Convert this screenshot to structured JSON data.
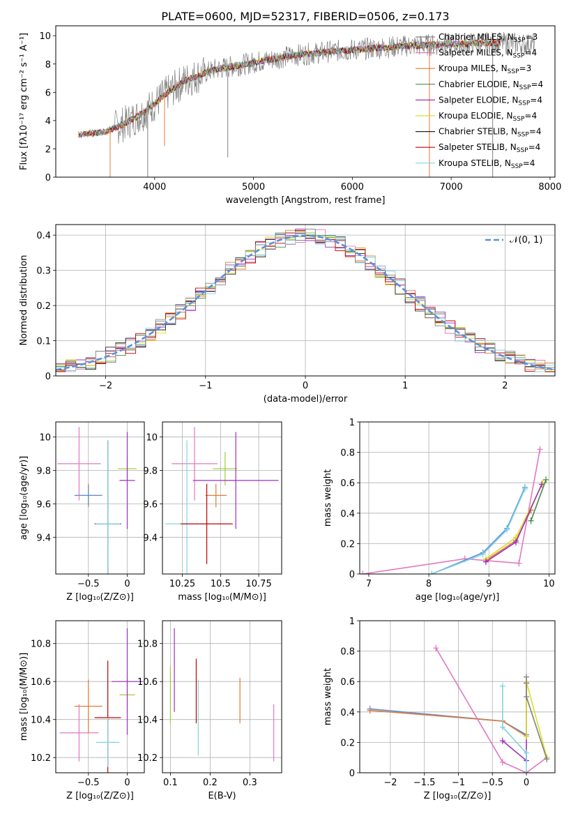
{
  "figure_title": "PLATE=0600, MJD=52317, FIBERID=0506, z=0.173",
  "colors": {
    "grey": "#808080",
    "pink": "#e377c2",
    "orange": "#e07b39",
    "green": "#4a8a4a",
    "purple": "#9b30c0",
    "yellow": "#d9e021",
    "black": "#222222",
    "red": "#c00000",
    "cyan": "#7fd3e0",
    "blue": "#5b8fd9",
    "olive": "#9acd32"
  },
  "chart_data": [
    {
      "id": "spectrum",
      "type": "line",
      "xlabel": "wavelength [Angstrom, rest frame]",
      "ylabel": "Flux [fλ10⁻¹⁷ erg cm⁻² s⁻¹ A⁻¹]",
      "xlim": [
        3000,
        8050
      ],
      "ylim": [
        0,
        10.7
      ],
      "xticks": [
        4000,
        5000,
        6000,
        7000,
        8000
      ],
      "yticks": [
        0,
        2,
        4,
        6,
        8,
        10
      ],
      "grid": false,
      "legend_position": "top-right",
      "legend": [
        {
          "label": "Chabrier MILES, N_SSP=3",
          "color": "grey"
        },
        {
          "label": "Salpeter MILES, N_SSP=4",
          "color": "pink"
        },
        {
          "label": "Kroupa MILES, N_SSP=3",
          "color": "orange"
        },
        {
          "label": "Chabrier ELODIE, N_SSP=4",
          "color": "green"
        },
        {
          "label": "Salpeter ELODIE, N_SSP=4",
          "color": "purple"
        },
        {
          "label": "Kroupa ELODIE, N_SSP=4",
          "color": "yellow"
        },
        {
          "label": "Chabrier STELIB, N_SSP=4",
          "color": "black"
        },
        {
          "label": "Salpeter STELIB, N_SSP=4",
          "color": "red"
        },
        {
          "label": "Kroupa STELIB, N_SSP=4",
          "color": "cyan"
        }
      ],
      "continuum": {
        "x": [
          3230,
          3500,
          3700,
          3900,
          4100,
          4300,
          4600,
          5000,
          5400,
          5800,
          6200,
          6600,
          7000,
          7400,
          7800
        ],
        "y": [
          3.0,
          3.2,
          3.8,
          4.6,
          5.8,
          6.8,
          7.6,
          8.1,
          8.6,
          8.9,
          9.1,
          9.3,
          9.4,
          9.5,
          9.4
        ]
      },
      "dips": [
        {
          "x": 3550,
          "y": 0
        },
        {
          "x": 3930,
          "y": 0
        },
        {
          "x": 4100,
          "y": 2.2
        },
        {
          "x": 4740,
          "y": 1.4
        },
        {
          "x": 6780,
          "y": 0
        },
        {
          "x": 7420,
          "y": 0
        }
      ]
    },
    {
      "id": "residuals",
      "type": "line",
      "xlabel": "(data-model)/error",
      "ylabel": "Normed distribution",
      "xlim": [
        -2.5,
        2.5
      ],
      "ylim": [
        0,
        0.43
      ],
      "xticks": [
        -2,
        -1,
        0,
        1,
        2
      ],
      "yticks": [
        0.0,
        0.1,
        0.2,
        0.3,
        0.4
      ],
      "grid": true,
      "legend_position": "top-right",
      "legend_label": "𝒩(0, 1)",
      "gaussian": {
        "mu": 0,
        "sigma": 1,
        "color": "blue"
      }
    },
    {
      "id": "age_vs_Z",
      "type": "scatter",
      "xlabel": "Z [log₁₀(Z/Z⊙)]",
      "ylabel": "age  [log₁₀(age/yr)]",
      "xlim": [
        -0.92,
        0.22
      ],
      "ylim": [
        9.18,
        10.09
      ],
      "xticks": [
        -0.5,
        0.0
      ],
      "yticks": [
        9.4,
        9.6,
        9.8,
        10.0
      ],
      "grid": true,
      "points": [
        {
          "x": -0.62,
          "y": 9.84,
          "xerr": 0.28,
          "yerr": 0.22,
          "color": "pink"
        },
        {
          "x": -0.5,
          "y": 9.65,
          "xerr": 0.18,
          "yerr": 0.07,
          "color": "orange"
        },
        {
          "x": -0.5,
          "y": 9.65,
          "xerr": 0.17,
          "yerr": 0.06,
          "color": "blue"
        },
        {
          "x": -0.25,
          "y": 9.48,
          "xerr": 0.17,
          "yerr": 0.5,
          "color": "black"
        },
        {
          "x": -0.25,
          "y": 9.48,
          "xerr": 0.16,
          "yerr": 0.5,
          "color": "cyan"
        },
        {
          "x": 0.0,
          "y": 9.81,
          "xerr": 0.12,
          "yerr": 0.07,
          "color": "olive"
        },
        {
          "x": 0.0,
          "y": 9.74,
          "xerr": 0.1,
          "yerr": 0.29,
          "color": "purple"
        }
      ]
    },
    {
      "id": "age_vs_mass",
      "type": "scatter",
      "xlabel": "mass [log₁₀(M/M⊙)]",
      "ylabel": "",
      "xlim": [
        10.12,
        10.9
      ],
      "ylim": [
        9.18,
        10.09
      ],
      "xticks": [
        10.25,
        10.5,
        10.75
      ],
      "yticks": [
        9.4,
        9.6,
        9.8,
        10.0
      ],
      "grid": true,
      "points": [
        {
          "x": 10.33,
          "y": 9.84,
          "xerr": 0.15,
          "yerr": 0.22,
          "color": "pink"
        },
        {
          "x": 10.47,
          "y": 9.65,
          "xerr": 0.07,
          "yerr": 0.07,
          "color": "orange"
        },
        {
          "x": 10.28,
          "y": 9.48,
          "xerr": 0.14,
          "yerr": 0.5,
          "color": "cyan"
        },
        {
          "x": 10.41,
          "y": 9.48,
          "xerr": 0.17,
          "yerr": 0.24,
          "color": "red"
        },
        {
          "x": 10.53,
          "y": 9.81,
          "xerr": 0.08,
          "yerr": 0.1,
          "color": "olive"
        },
        {
          "x": 10.6,
          "y": 9.74,
          "xerr": 0.28,
          "yerr": 0.29,
          "color": "purple"
        }
      ]
    },
    {
      "id": "massweight_vs_age",
      "type": "line",
      "xlabel": "age  [log₁₀(age/yr)]",
      "ylabel": "mass weight",
      "xlim": [
        6.85,
        10.1
      ],
      "ylim": [
        0,
        1.0
      ],
      "xticks": [
        7,
        8,
        9,
        10
      ],
      "yticks": [
        0.0,
        0.2,
        0.4,
        0.6,
        0.8,
        1.0
      ],
      "grid": true,
      "series": [
        {
          "color": "pink",
          "x": [
            6.9,
            8.6,
            9.5,
            9.85
          ],
          "y": [
            0.0,
            0.1,
            0.07,
            0.82
          ]
        },
        {
          "color": "blue",
          "x": [
            8.05,
            8.9,
            9.3,
            9.6
          ],
          "y": [
            0.0,
            0.14,
            0.3,
            0.57
          ]
        },
        {
          "color": "cyan",
          "x": [
            8.05,
            8.9,
            9.3,
            9.6
          ],
          "y": [
            0.0,
            0.13,
            0.29,
            0.56
          ]
        },
        {
          "color": "orange",
          "x": [
            8.95,
            9.45,
            9.7
          ],
          "y": [
            0.09,
            0.22,
            0.42
          ]
        },
        {
          "color": "yellow",
          "x": [
            8.95,
            9.45,
            9.9
          ],
          "y": [
            0.1,
            0.24,
            0.6
          ]
        },
        {
          "color": "purple",
          "x": [
            8.95,
            9.45,
            9.88
          ],
          "y": [
            0.08,
            0.21,
            0.59
          ]
        },
        {
          "color": "green",
          "x": [
            9.7,
            9.95
          ],
          "y": [
            0.35,
            0.62
          ]
        }
      ]
    },
    {
      "id": "mass_vs_Z",
      "type": "scatter",
      "xlabel": "Z [log₁₀(Z/Z⊙)]",
      "ylabel": "mass [log₁₀(M/M⊙)]",
      "xlim": [
        -0.92,
        0.22
      ],
      "ylim": [
        10.12,
        10.92
      ],
      "xticks": [
        -0.5,
        0.0
      ],
      "yticks": [
        10.2,
        10.4,
        10.6,
        10.8
      ],
      "grid": true,
      "points": [
        {
          "x": -0.62,
          "y": 10.33,
          "xerr": 0.25,
          "yerr": 0.15,
          "color": "pink"
        },
        {
          "x": -0.5,
          "y": 10.47,
          "xerr": 0.18,
          "yerr": 0.14,
          "color": "orange"
        },
        {
          "x": -0.25,
          "y": 10.41,
          "xerr": 0.17,
          "yerr": 0.3,
          "color": "red"
        },
        {
          "x": -0.25,
          "y": 10.28,
          "xerr": 0.15,
          "yerr": 0.13,
          "color": "cyan"
        },
        {
          "x": 0.0,
          "y": 10.53,
          "xerr": 0.1,
          "yerr": 0.1,
          "color": "olive"
        },
        {
          "x": 0.0,
          "y": 10.6,
          "xerr": 0.2,
          "yerr": 0.28,
          "color": "purple"
        }
      ]
    },
    {
      "id": "mass_vs_EBV",
      "type": "scatter",
      "xlabel": "E(B-V)",
      "ylabel": "",
      "xlim": [
        0.08,
        0.38
      ],
      "ylim": [
        10.12,
        10.92
      ],
      "xticks": [
        0.1,
        0.2,
        0.3
      ],
      "yticks": [
        10.2,
        10.4,
        10.6,
        10.8
      ],
      "grid": true,
      "points": [
        {
          "x": 0.1,
          "y": 10.53,
          "yerr": 0.15,
          "color": "olive"
        },
        {
          "x": 0.11,
          "y": 10.66,
          "yerr": 0.22,
          "color": "purple"
        },
        {
          "x": 0.165,
          "y": 10.55,
          "yerr": 0.17,
          "color": "red"
        },
        {
          "x": 0.17,
          "y": 10.41,
          "yerr": 0.2,
          "color": "cyan"
        },
        {
          "x": 0.275,
          "y": 10.5,
          "yerr": 0.12,
          "color": "orange"
        },
        {
          "x": 0.36,
          "y": 10.33,
          "yerr": 0.15,
          "color": "pink"
        }
      ]
    },
    {
      "id": "massweight_vs_Z",
      "type": "line",
      "xlabel": "Z [log₁₀(Z/Z⊙)]",
      "ylabel": "mass weight",
      "xlim": [
        -2.45,
        0.42
      ],
      "ylim": [
        0,
        1.0
      ],
      "xticks": [
        -2.0,
        -1.5,
        -1.0,
        -0.5,
        0.0
      ],
      "yticks": [
        0.0,
        0.2,
        0.4,
        0.6,
        0.8,
        1.0
      ],
      "grid": true,
      "series": [
        {
          "color": "blue",
          "x": [
            -2.3,
            -0.35,
            0.0
          ],
          "y": [
            0.42,
            0.34,
            0.25
          ]
        },
        {
          "color": "orange",
          "x": [
            -2.3,
            -0.35,
            0.0
          ],
          "y": [
            0.41,
            0.34,
            0.24
          ]
        },
        {
          "color": "pink",
          "x": [
            -1.33,
            -0.35,
            0.0,
            0.3
          ],
          "y": [
            0.82,
            0.07,
            0.0,
            0.1
          ]
        },
        {
          "color": "purple",
          "x": [
            -0.35,
            0.0,
            0.0
          ],
          "y": [
            0.21,
            0.08,
            0.59
          ]
        },
        {
          "color": "cyan",
          "x": [
            -0.35,
            -0.35,
            0.0,
            0.0
          ],
          "y": [
            0.57,
            0.3,
            0.13,
            0.0
          ]
        },
        {
          "color": "yellow",
          "x": [
            0.0,
            0.0,
            0.3
          ],
          "y": [
            0.24,
            0.6,
            0.1
          ]
        },
        {
          "color": "grey",
          "x": [
            0.0,
            0.0,
            0.3
          ],
          "y": [
            0.63,
            0.5,
            0.09
          ]
        }
      ]
    }
  ]
}
